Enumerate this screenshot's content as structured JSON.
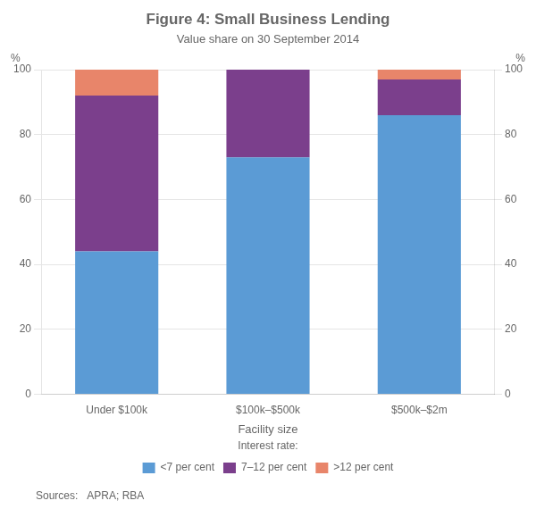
{
  "chart_data": {
    "type": "bar",
    "title": "Figure 4: Small Business Lending",
    "subtitle": "Value share on 30 September 2014",
    "xlabel": "Facility size",
    "ylabel": "%",
    "y2label": "%",
    "categories": [
      "Under $100k",
      "$100k–$500k",
      "$500k–$2m"
    ],
    "series": [
      {
        "name": "<7 per cent",
        "color": "#5B9BD5",
        "values": [
          44,
          73,
          86
        ]
      },
      {
        "name": "7–12 per cent",
        "color": "#7B3F8C",
        "values": [
          48,
          27,
          11
        ]
      },
      {
        "name": ">12 per cent",
        "color": "#E8856A",
        "values": [
          8,
          0,
          3
        ]
      }
    ],
    "stacked": true,
    "ylim": [
      0,
      100
    ],
    "yticks": [
      0,
      20,
      40,
      60,
      80,
      100
    ],
    "y2lim": [
      0,
      100
    ],
    "y2ticks": [
      0,
      20,
      40,
      60,
      80,
      100
    ],
    "grid": true,
    "legend": "bottom",
    "legend_title": "Interest rate:",
    "source": "Sources:   APRA; RBA"
  }
}
